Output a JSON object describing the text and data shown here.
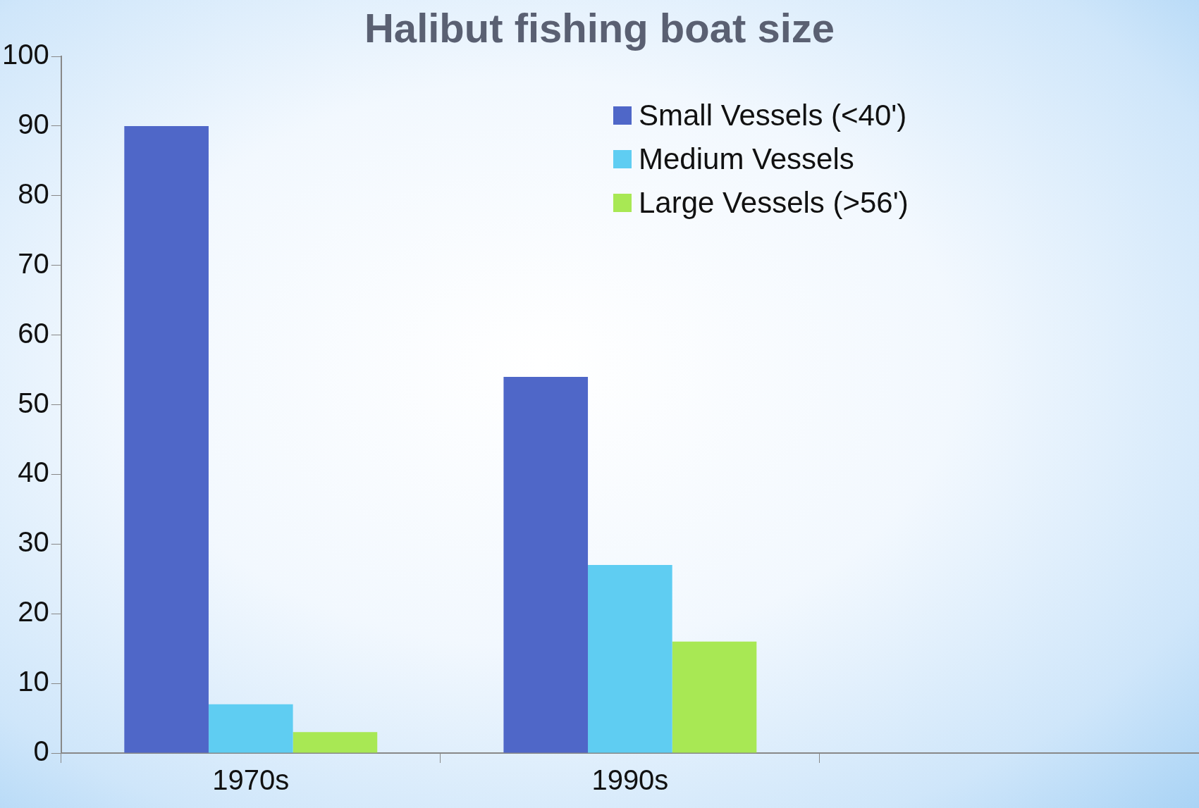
{
  "chart_data": {
    "type": "bar",
    "title": "Halibut fishing boat size",
    "categories": [
      "1970s",
      "1990s",
      null
    ],
    "series": [
      {
        "name": "Small Vessels (<40')",
        "color": "#4f67c8",
        "values": [
          90,
          54,
          null
        ]
      },
      {
        "name": "Medium Vessels",
        "color": "#5fcdf2",
        "values": [
          7,
          27,
          null
        ]
      },
      {
        "name": "Large Vessels (>56')",
        "color": "#a8e854",
        "values": [
          3,
          16,
          null
        ]
      }
    ],
    "ylim": [
      0,
      100
    ],
    "yticks": [
      0,
      10,
      20,
      30,
      40,
      50,
      60,
      70,
      80,
      90,
      100
    ],
    "grid": false,
    "legend": "top right"
  }
}
